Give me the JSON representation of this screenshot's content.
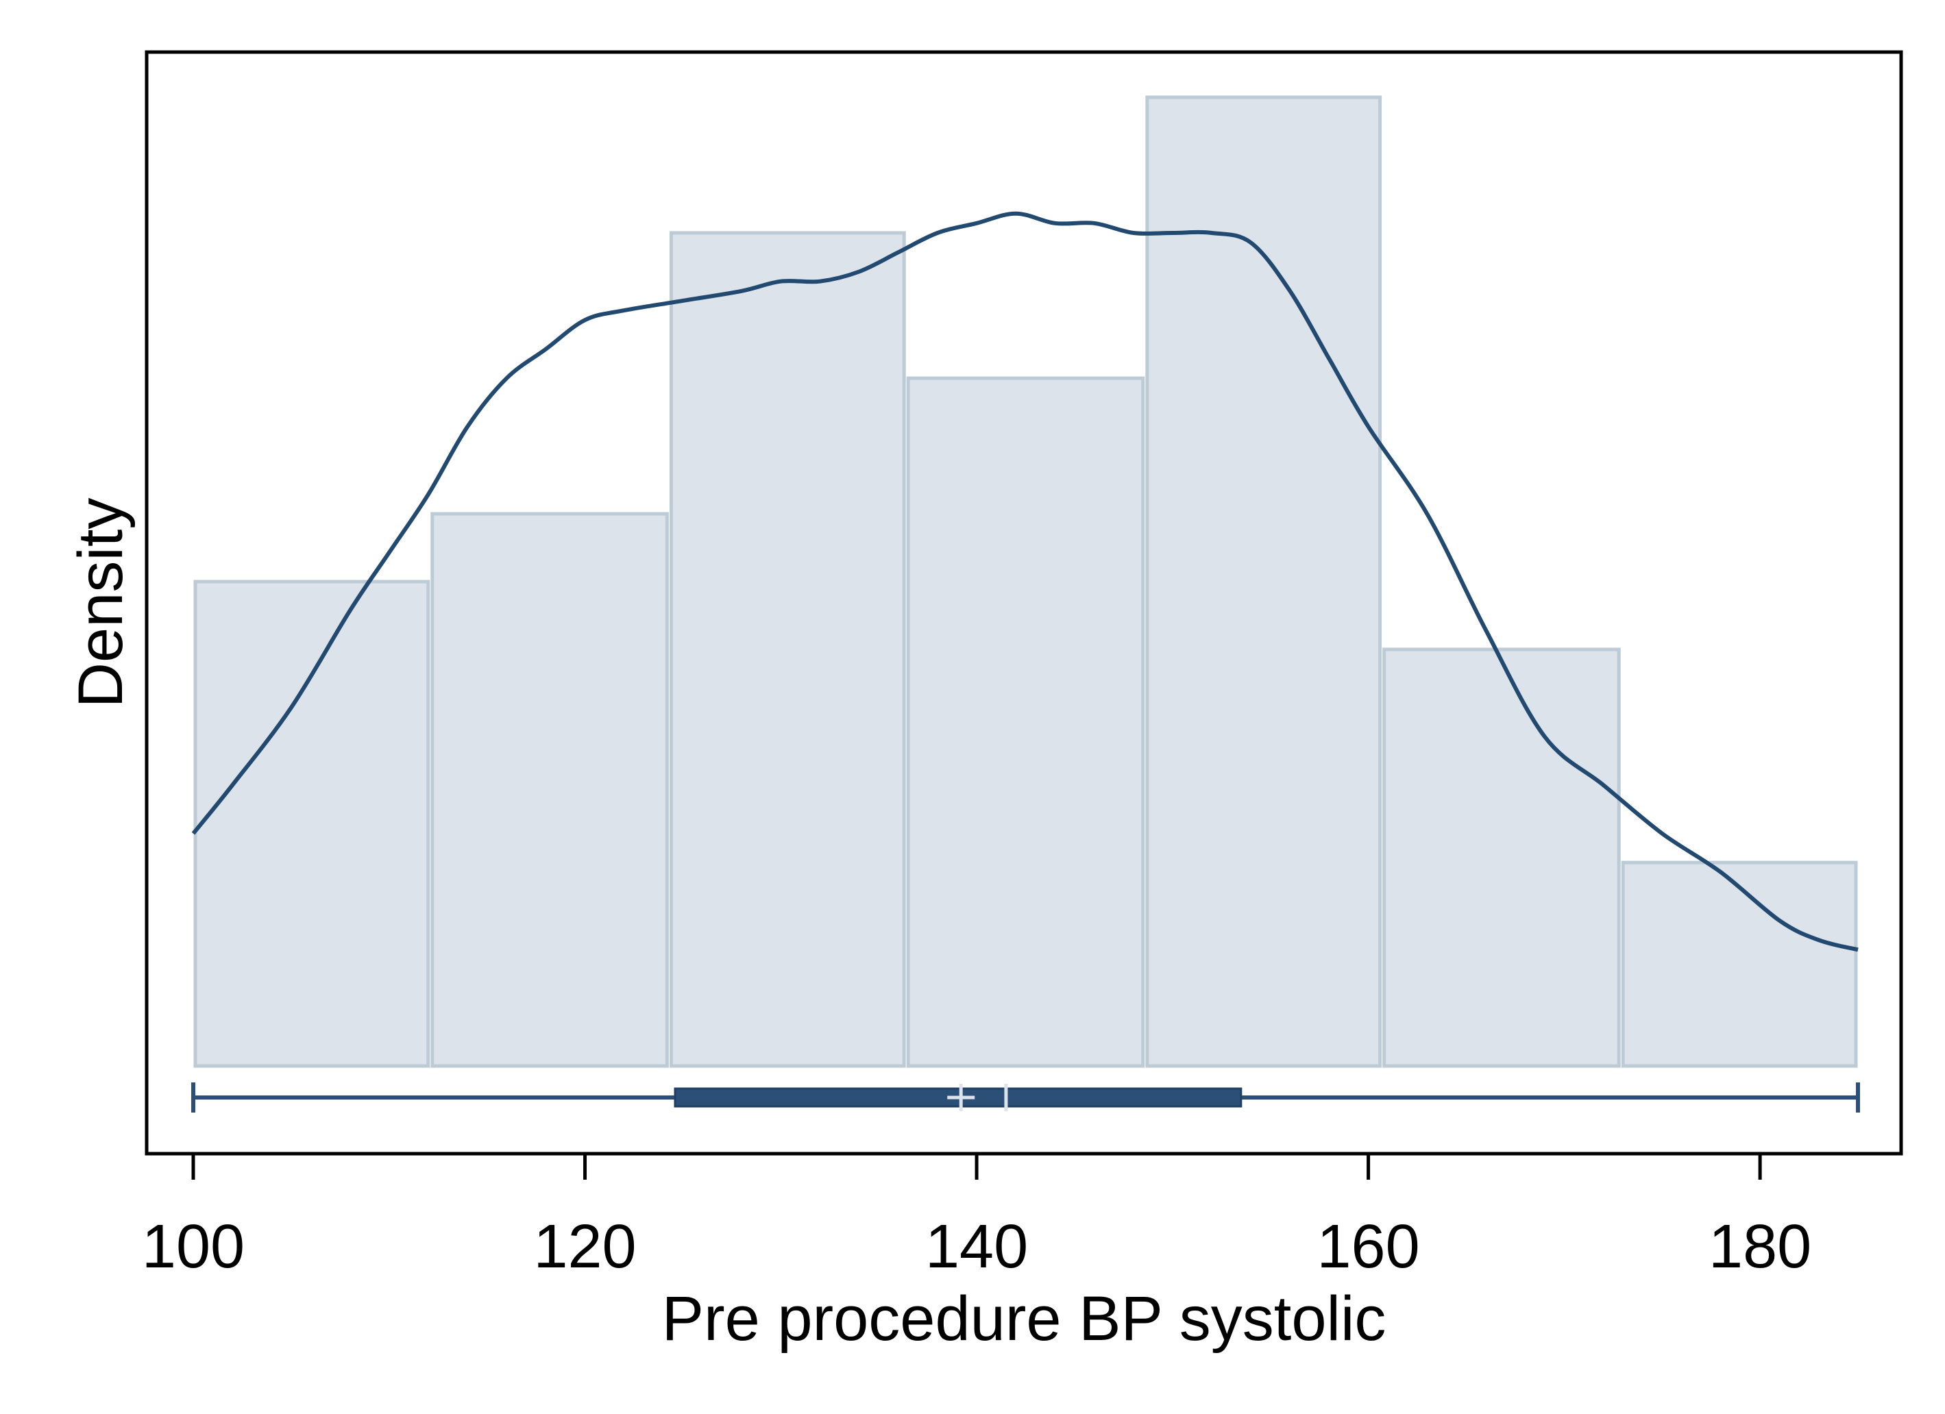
{
  "chart_data": {
    "type": "bar",
    "subtype": "histogram with kernel density and box plot",
    "xlabel": "Pre procedure BP systolic",
    "ylabel": "Density",
    "xlim": [
      100,
      185
    ],
    "ylim": [
      0,
      1
    ],
    "y_scale_note": "relative density; y-axis has no tick labels",
    "x_ticks": [
      100,
      120,
      140,
      160,
      180
    ],
    "grid": false,
    "legend": "none",
    "histogram": {
      "bins": [
        {
          "start": 100.0,
          "end": 112.1,
          "density": 0.5
        },
        {
          "start": 112.1,
          "end": 124.3,
          "density": 0.57
        },
        {
          "start": 124.3,
          "end": 136.4,
          "density": 0.86
        },
        {
          "start": 136.4,
          "end": 148.6,
          "density": 0.71
        },
        {
          "start": 148.6,
          "end": 160.7,
          "density": 1.0
        },
        {
          "start": 160.7,
          "end": 172.9,
          "density": 0.43
        },
        {
          "start": 172.9,
          "end": 185.0,
          "density": 0.21
        }
      ],
      "fill": "#dce3eb",
      "stroke": "#bccbd6"
    },
    "kde": {
      "x": [
        100,
        102,
        105,
        108,
        110,
        112,
        114,
        116,
        118,
        120,
        122,
        125,
        128,
        130,
        132,
        134,
        136,
        138,
        140,
        142,
        144,
        146,
        148,
        150,
        152,
        154,
        156,
        158,
        160,
        163,
        166,
        169,
        172,
        175,
        178,
        181,
        183,
        185
      ],
      "y": [
        0.24,
        0.29,
        0.37,
        0.47,
        0.53,
        0.59,
        0.66,
        0.71,
        0.74,
        0.77,
        0.78,
        0.79,
        0.8,
        0.81,
        0.81,
        0.82,
        0.84,
        0.86,
        0.87,
        0.88,
        0.87,
        0.87,
        0.86,
        0.86,
        0.86,
        0.85,
        0.8,
        0.73,
        0.66,
        0.57,
        0.45,
        0.34,
        0.29,
        0.24,
        0.2,
        0.15,
        0.13,
        0.12
      ],
      "color": "#22496f"
    },
    "boxplot": {
      "min": 100,
      "q1": 124.6,
      "median": 141.5,
      "mean": 139.2,
      "q3": 153.5,
      "max": 185,
      "color": "#2b4f77",
      "marker_color": "#dce3eb"
    }
  }
}
